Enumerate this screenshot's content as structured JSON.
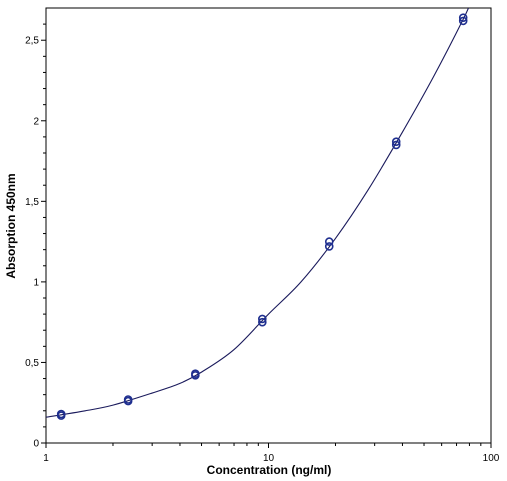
{
  "chart_data": {
    "type": "scatter",
    "title": "",
    "xlabel": "Concentration (ng/ml)",
    "ylabel": "Absorption 450nm",
    "x_scale": "log",
    "xlim": [
      1,
      100
    ],
    "ylim": [
      0,
      2.7
    ],
    "x_ticks": [
      {
        "value": 1,
        "label": "1"
      },
      {
        "value": 10,
        "label": "10"
      },
      {
        "value": 100,
        "label": "100"
      }
    ],
    "y_ticks": [
      {
        "value": 0,
        "label": "0"
      },
      {
        "value": 0.5,
        "label": "0,5"
      },
      {
        "value": 1,
        "label": "1"
      },
      {
        "value": 1.5,
        "label": "1,5"
      },
      {
        "value": 2,
        "label": "2"
      },
      {
        "value": 2.5,
        "label": "2,5"
      }
    ],
    "grid": false,
    "legend": "none",
    "series": [
      {
        "kind": "points",
        "marker": "open-circle",
        "color": "#1f2f8f",
        "points": [
          {
            "x": 1.17,
            "y": 0.17
          },
          {
            "x": 1.17,
            "y": 0.18
          },
          {
            "x": 2.34,
            "y": 0.26
          },
          {
            "x": 2.34,
            "y": 0.27
          },
          {
            "x": 4.69,
            "y": 0.42
          },
          {
            "x": 4.69,
            "y": 0.43
          },
          {
            "x": 9.38,
            "y": 0.75
          },
          {
            "x": 9.38,
            "y": 0.77
          },
          {
            "x": 18.75,
            "y": 1.22
          },
          {
            "x": 18.75,
            "y": 1.25
          },
          {
            "x": 37.5,
            "y": 1.85
          },
          {
            "x": 37.5,
            "y": 1.87
          },
          {
            "x": 75,
            "y": 2.62
          },
          {
            "x": 75,
            "y": 2.64
          }
        ]
      },
      {
        "kind": "fit-curve",
        "color": "#1a1a5c",
        "points": [
          {
            "x": 1,
            "y": 0.16
          },
          {
            "x": 1.5,
            "y": 0.2
          },
          {
            "x": 2,
            "y": 0.235
          },
          {
            "x": 3,
            "y": 0.31
          },
          {
            "x": 4,
            "y": 0.37
          },
          {
            "x": 5,
            "y": 0.44
          },
          {
            "x": 7,
            "y": 0.58
          },
          {
            "x": 10,
            "y": 0.8
          },
          {
            "x": 14,
            "y": 1.0
          },
          {
            "x": 20,
            "y": 1.27
          },
          {
            "x": 28,
            "y": 1.57
          },
          {
            "x": 40,
            "y": 1.93
          },
          {
            "x": 55,
            "y": 2.27
          },
          {
            "x": 75,
            "y": 2.63
          },
          {
            "x": 82,
            "y": 2.75
          }
        ]
      }
    ]
  }
}
